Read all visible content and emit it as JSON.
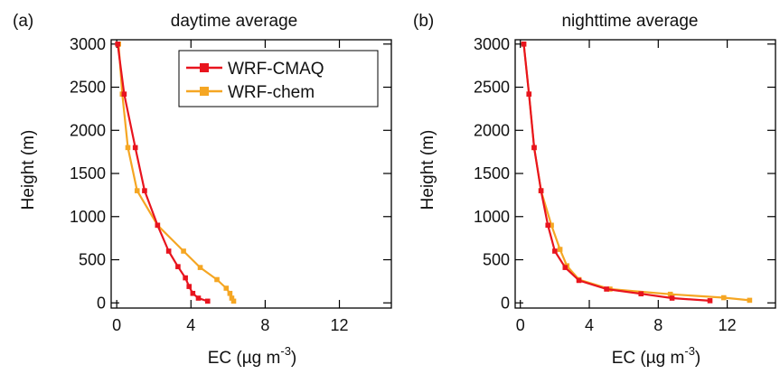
{
  "colors": {
    "wrf_cmaq": "#e8141e",
    "wrf_chem": "#f5a623",
    "axis": "#000000"
  },
  "legend": {
    "items": [
      {
        "label": "WRF-CMAQ",
        "color": "#e8141e",
        "marker": "square"
      },
      {
        "label": "WRF-chem",
        "color": "#f5a623",
        "marker": "square"
      }
    ]
  },
  "chart_data": [
    {
      "type": "line",
      "panel_label": "(a)",
      "title": "daytime average",
      "xlabel": "EC (µg m",
      "xlabel_sup": "-3",
      "xlabel_end": ")",
      "ylabel": "Height (m)",
      "xlim": [
        -0.3,
        14.8
      ],
      "ylim": [
        -60,
        3050
      ],
      "xticks": [
        0,
        4,
        8,
        12
      ],
      "yticks": [
        0,
        500,
        1000,
        1500,
        2000,
        2500,
        3000
      ],
      "grid": false,
      "legend_position": "top-right",
      "series": [
        {
          "name": "WRF-CMAQ",
          "color": "#e8141e",
          "points": [
            [
              4.9,
              20
            ],
            [
              4.4,
              55
            ],
            [
              4.1,
              110
            ],
            [
              3.9,
              190
            ],
            [
              3.7,
              290
            ],
            [
              3.3,
              420
            ],
            [
              2.8,
              600
            ],
            [
              2.2,
              900
            ],
            [
              1.5,
              1300
            ],
            [
              1.0,
              1800
            ],
            [
              0.4,
              2420
            ],
            [
              0.05,
              3000
            ]
          ]
        },
        {
          "name": "WRF-chem",
          "color": "#f5a623",
          "points": [
            [
              6.3,
              20
            ],
            [
              6.2,
              55
            ],
            [
              6.1,
              110
            ],
            [
              5.9,
              170
            ],
            [
              5.4,
              270
            ],
            [
              4.5,
              410
            ],
            [
              3.6,
              600
            ],
            [
              2.2,
              900
            ],
            [
              1.1,
              1300
            ],
            [
              0.6,
              1800
            ],
            [
              0.3,
              2420
            ],
            [
              0.1,
              3000
            ]
          ]
        }
      ]
    },
    {
      "type": "line",
      "panel_label": "(b)",
      "title": "nighttime average",
      "xlabel": "EC (µg m",
      "xlabel_sup": "-3",
      "xlabel_end": ")",
      "ylabel": "Height (m)",
      "xlim": [
        -0.3,
        14.8
      ],
      "ylim": [
        -60,
        3050
      ],
      "xticks": [
        0,
        4,
        8,
        12
      ],
      "yticks": [
        0,
        500,
        1000,
        1500,
        2000,
        2500,
        3000
      ],
      "grid": false,
      "series": [
        {
          "name": "WRF-CMAQ",
          "color": "#e8141e",
          "points": [
            [
              11.0,
              25
            ],
            [
              8.8,
              55
            ],
            [
              7.0,
              105
            ],
            [
              5.0,
              160
            ],
            [
              3.4,
              260
            ],
            [
              2.6,
              410
            ],
            [
              2.0,
              600
            ],
            [
              1.6,
              900
            ],
            [
              1.2,
              1300
            ],
            [
              0.8,
              1800
            ],
            [
              0.5,
              2420
            ],
            [
              0.2,
              3000
            ]
          ]
        },
        {
          "name": "WRF-chem",
          "color": "#f5a623",
          "points": [
            [
              13.3,
              30
            ],
            [
              11.8,
              60
            ],
            [
              8.7,
              100
            ],
            [
              5.2,
              160
            ],
            [
              3.4,
              270
            ],
            [
              2.7,
              430
            ],
            [
              2.3,
              620
            ],
            [
              1.8,
              900
            ],
            [
              1.2,
              1300
            ],
            [
              0.8,
              1800
            ],
            [
              0.5,
              2420
            ],
            [
              0.2,
              3000
            ]
          ]
        }
      ]
    }
  ]
}
